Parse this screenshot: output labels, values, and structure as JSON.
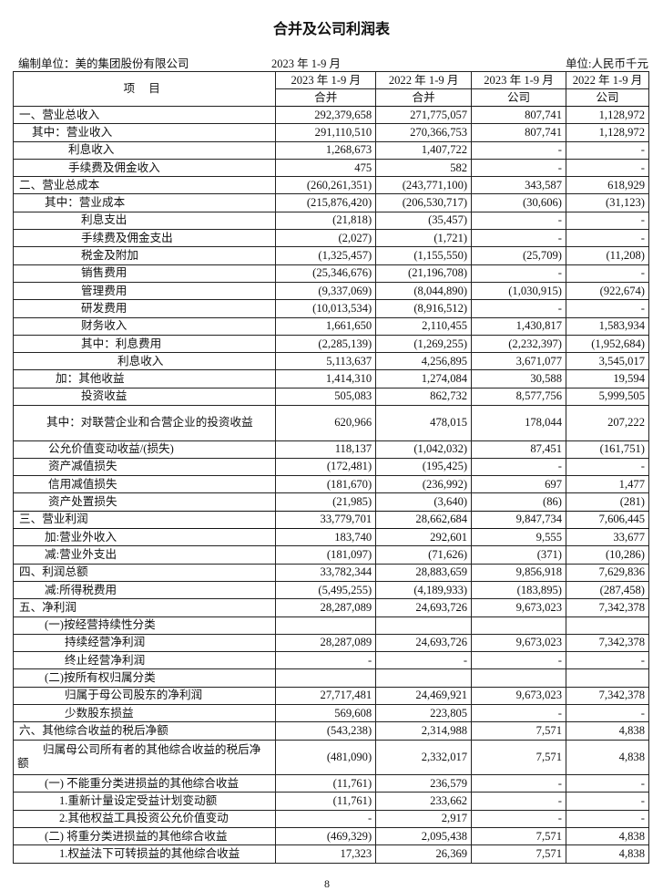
{
  "title": "合并及公司利润表",
  "meta": {
    "unit": "编制单位：美的集团股份有限公司",
    "period": "2023 年 1-9 月",
    "currency": "单位:人民币千元"
  },
  "header": {
    "item": "项 目",
    "periods": [
      "2023 年 1-9 月",
      "2022 年 1-9 月",
      "2023 年 1-9 月",
      "2022 年 1-9 月"
    ],
    "scopes": [
      "合并",
      "合并",
      "公司",
      "公司"
    ]
  },
  "rows": [
    {
      "label": "一、营业总收入",
      "values": [
        "292,379,658",
        "271,775,057",
        "807,741",
        "1,128,972"
      ]
    },
    {
      "label": "其中：营业收入",
      "values": [
        "291,110,510",
        "270,366,753",
        "807,741",
        "1,128,972"
      ]
    },
    {
      "label": "利息收入",
      "values": [
        "1,268,673",
        "1,407,722",
        "-",
        "-"
      ]
    },
    {
      "label": "手续费及佣金收入",
      "values": [
        "475",
        "582",
        "-",
        "-"
      ]
    },
    {
      "label": "二、营业总成本",
      "values": [
        "(260,261,351)",
        "(243,771,100)",
        "343,587",
        "618,929"
      ]
    },
    {
      "label": "其中：营业成本",
      "values": [
        "(215,876,420)",
        "(206,530,717)",
        "(30,606)",
        "(31,123)"
      ]
    },
    {
      "label": "利息支出",
      "values": [
        "(21,818)",
        "(35,457)",
        "-",
        "-"
      ]
    },
    {
      "label": "手续费及佣金支出",
      "values": [
        "(2,027)",
        "(1,721)",
        "-",
        "-"
      ]
    },
    {
      "label": "税金及附加",
      "values": [
        "(1,325,457)",
        "(1,155,550)",
        "(25,709)",
        "(11,208)"
      ]
    },
    {
      "label": "销售费用",
      "values": [
        "(25,346,676)",
        "(21,196,708)",
        "-",
        "-"
      ]
    },
    {
      "label": "管理费用",
      "values": [
        "(9,337,069)",
        "(8,044,890)",
        "(1,030,915)",
        "(922,674)"
      ]
    },
    {
      "label": "研发费用",
      "values": [
        "(10,013,534)",
        "(8,916,512)",
        "-",
        "-"
      ]
    },
    {
      "label": "财务收入",
      "values": [
        "1,661,650",
        "2,110,455",
        "1,430,817",
        "1,583,934"
      ]
    },
    {
      "label": "其中：利息费用",
      "values": [
        "(2,285,139)",
        "(1,269,255)",
        "(2,232,397)",
        "(1,952,684)"
      ]
    },
    {
      "label": "利息收入",
      "values": [
        "5,113,637",
        "4,256,895",
        "3,671,077",
        "3,545,017"
      ]
    },
    {
      "label": "加：其他收益",
      "values": [
        "1,414,310",
        "1,274,084",
        "30,588",
        "19,594"
      ]
    },
    {
      "label": "投资收益",
      "values": [
        "505,083",
        "862,732",
        "8,577,756",
        "5,999,505"
      ]
    },
    {
      "label": "其中：对联营企业和合营企业的投资收益",
      "values": [
        "620,966",
        "478,015",
        "178,044",
        "207,222"
      ]
    },
    {
      "label": "公允价值变动收益/(损失)",
      "values": [
        "118,137",
        "(1,042,032)",
        "87,451",
        "(161,751)"
      ]
    },
    {
      "label": "资产减值损失",
      "values": [
        "(172,481)",
        "(195,425)",
        "-",
        "-"
      ]
    },
    {
      "label": "信用减值损失",
      "values": [
        "(181,670)",
        "(236,992)",
        "697",
        "1,477"
      ]
    },
    {
      "label": "资产处置损失",
      "values": [
        "(21,985)",
        "(3,640)",
        "(86)",
        "(281)"
      ]
    },
    {
      "label": "三、营业利润",
      "values": [
        "33,779,701",
        "28,662,684",
        "9,847,734",
        "7,606,445"
      ]
    },
    {
      "label": "加:营业外收入",
      "values": [
        "183,740",
        "292,601",
        "9,555",
        "33,677"
      ]
    },
    {
      "label": "减:营业外支出",
      "values": [
        "(181,097)",
        "(71,626)",
        "(371)",
        "(10,286)"
      ]
    },
    {
      "label": "四、利润总额",
      "values": [
        "33,782,344",
        "28,883,659",
        "9,856,918",
        "7,629,836"
      ]
    },
    {
      "label": "减:所得税费用",
      "values": [
        "(5,495,255)",
        "(4,189,933)",
        "(183,895)",
        "(287,458)"
      ]
    },
    {
      "label": "五、净利润",
      "values": [
        "28,287,089",
        "24,693,726",
        "9,673,023",
        "7,342,378"
      ]
    },
    {
      "label": "(一)按经营持续性分类",
      "values": [
        "",
        "",
        "",
        ""
      ]
    },
    {
      "label": "持续经营净利润",
      "values": [
        "28,287,089",
        "24,693,726",
        "9,673,023",
        "7,342,378"
      ]
    },
    {
      "label": "终止经营净利润",
      "values": [
        "-",
        "-",
        "-",
        "-"
      ]
    },
    {
      "label": "(二)按所有权归属分类",
      "values": [
        "",
        "",
        "",
        ""
      ]
    },
    {
      "label": "归属于母公司股东的净利润",
      "values": [
        "27,717,481",
        "24,469,921",
        "9,673,023",
        "7,342,378"
      ]
    },
    {
      "label": "少数股东损益",
      "values": [
        "569,608",
        "223,805",
        "-",
        "-"
      ]
    },
    {
      "label": "六、其他综合收益的税后净额",
      "values": [
        "(543,238)",
        "2,314,988",
        "7,571",
        "4,838"
      ]
    },
    {
      "label": "归属母公司所有者的其他综合收益的税后净额",
      "values": [
        "(481,090)",
        "2,332,017",
        "7,571",
        "4,838"
      ]
    },
    {
      "label": "(一) 不能重分类进损益的其他综合收益",
      "values": [
        "(11,761)",
        "236,579",
        "-",
        "-"
      ]
    },
    {
      "label": "1.重新计量设定受益计划变动额",
      "values": [
        "(11,761)",
        "233,662",
        "-",
        "-"
      ]
    },
    {
      "label": "2.其他权益工具投资公允价值变动",
      "values": [
        "-",
        "2,917",
        "-",
        "-"
      ]
    },
    {
      "label": "(二) 将重分类进损益的其他综合收益",
      "values": [
        "(469,329)",
        "2,095,438",
        "7,571",
        "4,838"
      ]
    },
    {
      "label": "1.权益法下可转损益的其他综合收益",
      "values": [
        "17,323",
        "26,369",
        "7,571",
        "4,838"
      ]
    }
  ],
  "page_number": "8"
}
